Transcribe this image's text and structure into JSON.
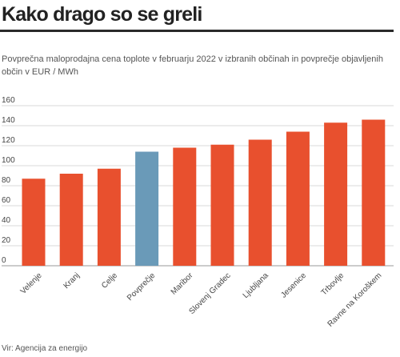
{
  "header": {
    "title": "Kako drago so se greli",
    "subtitle": "Povprečna maloprodajna cena toplote v februarju 2022 v izbranih občinah in povprečje objavljenih občin v EUR / MWh"
  },
  "footer": {
    "source": "Vir: Agencija za energijo"
  },
  "colors": {
    "bar": "#e8502e",
    "highlight": "#6a9ab8",
    "grid": "#d8d8d8",
    "title_rule": "#2a2a2a"
  },
  "chart_data": {
    "type": "bar",
    "title": "Kako drago so se greli",
    "subtitle": "Povprečna maloprodajna cena toplote v februarju 2022 v izbranih občinah in povprečje objavljenih občin v EUR / MWh",
    "xlabel": "",
    "ylabel": "",
    "categories": [
      "Velenje",
      "Kranj",
      "Celje",
      "Povprečje",
      "Maribor",
      "Slovenj Gradec",
      "Ljubljana",
      "Jesenice",
      "Trbovlje",
      "Ravne na Koroškem"
    ],
    "values": [
      87,
      92,
      97,
      114,
      118,
      121,
      126,
      134,
      143,
      146
    ],
    "highlight_category": "Povprečje",
    "ylim": [
      0,
      160
    ],
    "yticks": [
      0,
      20,
      40,
      60,
      80,
      100,
      120,
      140,
      160
    ],
    "grid": true,
    "legend": "none"
  }
}
